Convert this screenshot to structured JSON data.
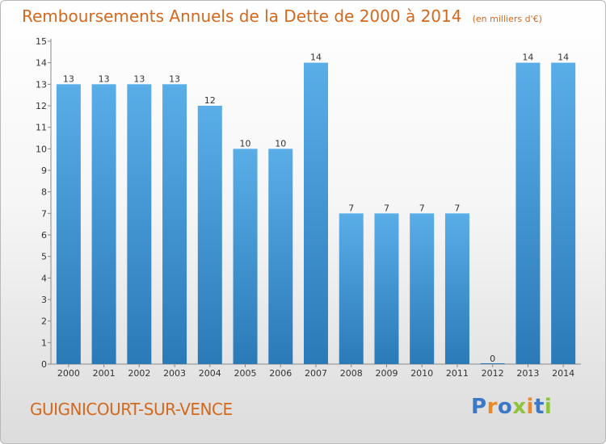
{
  "header": {
    "title": "Remboursements Annuels de la Dette de 2000 à 2014",
    "subtitle": "(en milliers d'€)"
  },
  "footer": {
    "place": "GUIGNICOURT-SUR-VENCE",
    "brand": "Proxiti"
  },
  "colors": {
    "bar_top": "#5aaee8",
    "bar_bottom": "#2a7ab8",
    "title": "#d2691e",
    "brand_letters": [
      "#3b78c8",
      "#e8892a",
      "#3b78c8",
      "#8fc33a",
      "#e8892a",
      "#3b78c8",
      "#8fc33a"
    ]
  },
  "chart_data": {
    "type": "bar",
    "title": "Remboursements Annuels de la Dette de 2000 à 2014",
    "xlabel": "",
    "ylabel": "",
    "categories": [
      "2000",
      "2001",
      "2002",
      "2003",
      "2004",
      "2005",
      "2006",
      "2007",
      "2008",
      "2009",
      "2010",
      "2011",
      "2012",
      "2013",
      "2014"
    ],
    "values": [
      13,
      13,
      13,
      13,
      12,
      10,
      10,
      14,
      7,
      7,
      7,
      7,
      0,
      14,
      14
    ],
    "value_labels": [
      "13",
      "13",
      "13",
      "13",
      "12",
      "10",
      "10",
      "14",
      "7",
      "7",
      "7",
      "7",
      "0",
      "14",
      "14"
    ],
    "ylim": [
      0,
      15
    ],
    "yticks": [
      0,
      1,
      2,
      3,
      4,
      5,
      6,
      7,
      8,
      9,
      10,
      11,
      12,
      13,
      14,
      15
    ],
    "grid": false
  }
}
